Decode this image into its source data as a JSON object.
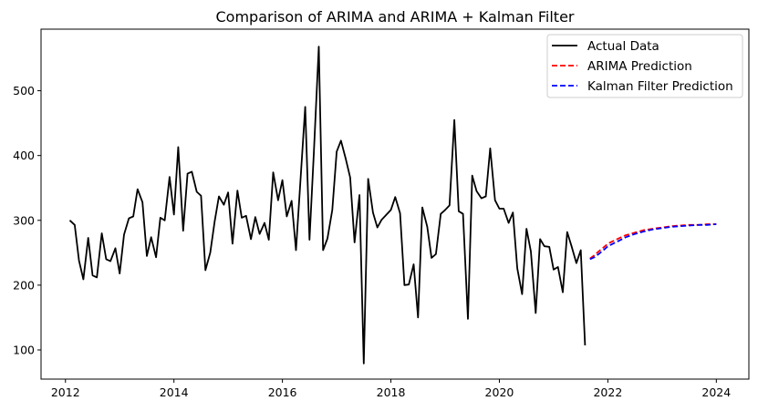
{
  "chart_data": {
    "type": "line",
    "title": "Comparison of ARIMA and ARIMA + Kalman Filter",
    "xlabel": "",
    "ylabel": "",
    "xlim": [
      2011.55,
      2024.6
    ],
    "ylim": [
      55,
      595
    ],
    "xticks": [
      2012,
      2014,
      2016,
      2018,
      2020,
      2022,
      2024
    ],
    "yticks": [
      100,
      200,
      300,
      400,
      500
    ],
    "grid": false,
    "legend_position": "top-right",
    "series": [
      {
        "name": "Actual Data",
        "color": "#000000",
        "style": "solid",
        "x": [
          2012.08,
          2012.17,
          2012.25,
          2012.33,
          2012.42,
          2012.5,
          2012.58,
          2012.67,
          2012.75,
          2012.83,
          2012.92,
          2013.0,
          2013.08,
          2013.17,
          2013.25,
          2013.33,
          2013.42,
          2013.5,
          2013.58,
          2013.67,
          2013.75,
          2013.83,
          2013.92,
          2014.0,
          2014.08,
          2014.17,
          2014.25,
          2014.33,
          2014.42,
          2014.5,
          2014.58,
          2014.67,
          2014.75,
          2014.83,
          2014.92,
          2015.0,
          2015.08,
          2015.17,
          2015.25,
          2015.33,
          2015.42,
          2015.5,
          2015.58,
          2015.67,
          2015.75,
          2015.83,
          2015.92,
          2016.0,
          2016.08,
          2016.17,
          2016.25,
          2016.33,
          2016.42,
          2016.5,
          2016.58,
          2016.67,
          2016.75,
          2016.83,
          2016.92,
          2017.0,
          2017.08,
          2017.17,
          2017.25,
          2017.33,
          2017.42,
          2017.5,
          2017.58,
          2017.67,
          2017.75,
          2017.83,
          2017.92,
          2018.0,
          2018.08,
          2018.17,
          2018.25,
          2018.33,
          2018.42,
          2018.5,
          2018.58,
          2018.67,
          2018.75,
          2018.83,
          2018.92,
          2019.0,
          2019.08,
          2019.17,
          2019.25,
          2019.33,
          2019.42,
          2019.5,
          2019.58,
          2019.67,
          2019.75,
          2019.83,
          2019.92,
          2020.0,
          2020.08,
          2020.17,
          2020.25,
          2020.33,
          2020.42,
          2020.5,
          2020.58,
          2020.67,
          2020.75,
          2020.83,
          2020.92,
          2021.0,
          2021.08,
          2021.17,
          2021.25,
          2021.33,
          2021.42,
          2021.5,
          2021.58
        ],
        "values": [
          300,
          293,
          238,
          209,
          273,
          215,
          212,
          280,
          240,
          237,
          257,
          218,
          278,
          303,
          306,
          348,
          328,
          245,
          274,
          243,
          304,
          300,
          367,
          309,
          413,
          284,
          372,
          375,
          344,
          338,
          223,
          250,
          298,
          337,
          324,
          343,
          264,
          346,
          304,
          307,
          271,
          305,
          279,
          296,
          270,
          374,
          331,
          362,
          306,
          330,
          254,
          357,
          475,
          270,
          405,
          568,
          254,
          272,
          316,
          406,
          423,
          394,
          366,
          266,
          339,
          79,
          364,
          312,
          289,
          301,
          309,
          316,
          336,
          311,
          200,
          201,
          232,
          150,
          320,
          290,
          242,
          248,
          310,
          316,
          323,
          455,
          314,
          310,
          148,
          369,
          345,
          334,
          337,
          411,
          331,
          318,
          318,
          296,
          312,
          226,
          186,
          287,
          252,
          157,
          271,
          260,
          259,
          224,
          228,
          189,
          282,
          260,
          234,
          254,
          107
        ]
      },
      {
        "name": "ARIMA Prediction",
        "color": "#ff0000",
        "style": "dashed",
        "x": [
          2021.67,
          2021.75,
          2021.83,
          2021.92,
          2022.0,
          2022.17,
          2022.33,
          2022.5,
          2022.67,
          2022.83,
          2023.0,
          2023.17,
          2023.33,
          2023.5,
          2023.67,
          2023.83,
          2024.0
        ],
        "values": [
          241,
          246,
          252,
          258,
          264,
          271,
          277,
          281,
          285,
          287,
          289,
          291,
          292,
          293,
          293,
          294,
          294
        ]
      },
      {
        "name": "Kalman Filter Prediction",
        "color": "#0000ff",
        "style": "dashed",
        "x": [
          2021.67,
          2021.75,
          2021.83,
          2021.92,
          2022.0,
          2022.17,
          2022.33,
          2022.5,
          2022.67,
          2022.83,
          2023.0,
          2023.17,
          2023.33,
          2023.5,
          2023.67,
          2023.83,
          2024.0
        ],
        "values": [
          240,
          243,
          248,
          254,
          260,
          267,
          274,
          279,
          283,
          286,
          288,
          290,
          291,
          292,
          293,
          293,
          294
        ]
      }
    ]
  }
}
